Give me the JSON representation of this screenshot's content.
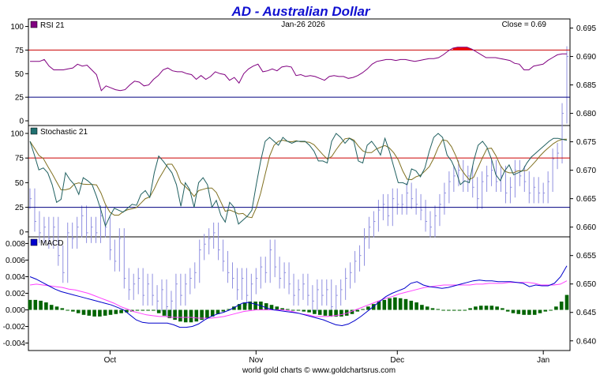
{
  "chart_data": {
    "type": "line",
    "title": "AD  -  Australian Dollar",
    "date": "Jan-26  2026",
    "close_label": "Close = 0.69",
    "footer": "world gold charts © www.goldchartsrus.com",
    "x_labels": [
      {
        "label": "Oct",
        "day": 17
      },
      {
        "label": "Nov",
        "day": 48
      },
      {
        "label": "Dec",
        "day": 78
      },
      {
        "label": "Jan",
        "day": 109
      }
    ],
    "price_axis": {
      "ylim": [
        0.6383,
        0.6966
      ],
      "ticks": [
        "0.695",
        "0.690",
        "0.685",
        "0.680",
        "0.675",
        "0.670",
        "0.665",
        "0.660",
        "0.655",
        "0.650",
        "0.645",
        "0.640"
      ]
    },
    "price_series": {
      "name": "Price",
      "color": "#9090e0",
      "close": [
        0.665,
        0.661,
        0.659,
        0.66,
        0.658,
        0.66,
        0.655,
        0.652,
        0.659,
        0.658,
        0.66,
        0.662,
        0.659,
        0.66,
        0.659,
        0.662,
        0.66,
        0.656,
        0.654,
        0.658,
        0.651,
        0.649,
        0.65,
        0.651,
        0.648,
        0.65,
        0.648,
        0.647,
        0.649,
        0.646,
        0.647,
        0.65,
        0.648,
        0.65,
        0.651,
        0.652,
        0.656,
        0.657,
        0.658,
        0.659,
        0.656,
        0.654,
        0.652,
        0.651,
        0.649,
        0.651,
        0.648,
        0.65,
        0.651,
        0.653,
        0.652,
        0.656,
        0.653,
        0.651,
        0.652,
        0.65,
        0.648,
        0.649,
        0.65,
        0.648,
        0.647,
        0.649,
        0.648,
        0.649,
        0.646,
        0.648,
        0.649,
        0.651,
        0.652,
        0.654,
        0.655,
        0.658,
        0.66,
        0.661,
        0.663,
        0.664,
        0.662,
        0.665,
        0.664,
        0.664,
        0.666,
        0.665,
        0.664,
        0.663,
        0.661,
        0.66,
        0.662,
        0.664,
        0.666,
        0.668,
        0.669,
        0.67,
        0.668,
        0.669,
        0.667,
        0.665,
        0.668,
        0.669,
        0.67,
        0.668,
        0.669,
        0.666,
        0.667,
        0.67,
        0.669,
        0.668,
        0.666,
        0.667,
        0.666,
        0.666,
        0.668,
        0.672,
        0.673,
        0.68,
        0.69
      ]
    },
    "rsi": {
      "name": "RSI 21",
      "legend_color": "#800080",
      "ylim": [
        -5,
        108
      ],
      "ticks": [
        100,
        75,
        50,
        25,
        0
      ],
      "levels": [
        {
          "value": 75,
          "color": "#cc0000"
        },
        {
          "value": 25,
          "color": "#000080"
        }
      ],
      "values": [
        63,
        63,
        63,
        65,
        58,
        54,
        54,
        54,
        55,
        56,
        60,
        58,
        59,
        54,
        49,
        32,
        37,
        35,
        33,
        32,
        33,
        38,
        42,
        41,
        37,
        38,
        44,
        48,
        54,
        56,
        53,
        52,
        52,
        50,
        49,
        44,
        48,
        44,
        47,
        52,
        50,
        49,
        43,
        46,
        40,
        50,
        55,
        58,
        60,
        52,
        53,
        55,
        53,
        57,
        58,
        57,
        48,
        49,
        47,
        48,
        47,
        45,
        43,
        47,
        48,
        47,
        47,
        45,
        46,
        48,
        51,
        55,
        60,
        63,
        64,
        65,
        65,
        64,
        65,
        65,
        64,
        63,
        64,
        65,
        66,
        66,
        67,
        70,
        74,
        77,
        78,
        78,
        78,
        76,
        73,
        70,
        67,
        67,
        67,
        66,
        65,
        64,
        61,
        60,
        54,
        54,
        58,
        59,
        60,
        64,
        67,
        70,
        71,
        71
      ]
    },
    "stochastic": {
      "name": "Stochastic 21",
      "legend_color": "#207070",
      "ylim": [
        -5,
        108
      ],
      "ticks": [
        100,
        75,
        50,
        25,
        0
      ],
      "levels": [
        {
          "value": 75,
          "color": "#cc0000"
        },
        {
          "value": 25,
          "color": "#000080"
        }
      ],
      "k_color": "#206060",
      "d_color": "#807020",
      "k": [
        92,
        78,
        63,
        65,
        60,
        48,
        30,
        33,
        60,
        53,
        48,
        38,
        55,
        52,
        48,
        36,
        22,
        6,
        16,
        24,
        22,
        20,
        24,
        28,
        27,
        38,
        42,
        35,
        60,
        77,
        72,
        66,
        60,
        48,
        26,
        50,
        43,
        25,
        50,
        55,
        48,
        25,
        32,
        17,
        10,
        30,
        25,
        8,
        12,
        16,
        22,
        48,
        72,
        92,
        96,
        92,
        88,
        96,
        92,
        90,
        92,
        92,
        92,
        88,
        82,
        72,
        72,
        70,
        92,
        100,
        96,
        90,
        95,
        92,
        72,
        70,
        88,
        92,
        86,
        78,
        95,
        82,
        66,
        50,
        50,
        48,
        64,
        62,
        56,
        65,
        82,
        96,
        100,
        96,
        78,
        72,
        62,
        48,
        52,
        50,
        72,
        88,
        92,
        86,
        74,
        58,
        52,
        62,
        68,
        58,
        60,
        62,
        70,
        76,
        80,
        84,
        88,
        92,
        95,
        95,
        94,
        93
      ]
    },
    "macd": {
      "name": "MACD",
      "legend_color": "#0000cc",
      "ylim": [
        -0.0049,
        0.0088
      ],
      "ticks": [
        "0.008",
        "0.006",
        "0.004",
        "0.002",
        "0.000",
        "-0.002",
        "-0.004"
      ],
      "macd_color": "#0000cc",
      "signal_color": "#ff40ff",
      "hist_color": "#006400",
      "macd": [
        0.004,
        0.0037,
        0.0033,
        0.0029,
        0.0025,
        0.0022,
        0.002,
        0.0018,
        0.0016,
        0.0014,
        0.0012,
        0.001,
        0.0008,
        0.0006,
        0.0003,
        0.0,
        -0.0006,
        -0.0012,
        -0.0015,
        -0.0016,
        -0.0016,
        -0.0016,
        -0.0016,
        -0.0018,
        -0.0021,
        -0.0021,
        -0.002,
        -0.0017,
        -0.0012,
        -0.0008,
        -0.0005,
        -0.0003,
        0.0,
        0.0004,
        0.0008,
        0.0009,
        0.0007,
        0.0005,
        0.0002,
        0.0,
        -0.0001,
        -0.0002,
        -0.0003,
        -0.0004,
        -0.0006,
        -0.0008,
        -0.001,
        -0.0012,
        -0.0015,
        -0.0018,
        -0.0019,
        -0.0017,
        -0.0013,
        -0.0008,
        -0.0002,
        0.0004,
        0.001,
        0.0016,
        0.002,
        0.0023,
        0.0026,
        0.0032,
        0.0034,
        0.003,
        0.0028,
        0.0027,
        0.0026,
        0.0027,
        0.0029,
        0.0031,
        0.0033,
        0.0035,
        0.0036,
        0.0035,
        0.0035,
        0.0034,
        0.0034,
        0.0034,
        0.0033,
        0.0032,
        0.0028,
        0.003,
        0.0029,
        0.0029,
        0.0032,
        0.004,
        0.0053
      ]
    },
    "signal_points": 84,
    "signal": [
      0.003,
      0.0031,
      0.003,
      0.0029,
      0.0028,
      0.0027,
      0.0025,
      0.0024,
      0.0022,
      0.002,
      0.0017,
      0.0014,
      0.0011,
      0.0008,
      0.0004,
      0.0001,
      -0.0002,
      -0.0004,
      -0.0006,
      -0.0007,
      -0.0008,
      -0.0008,
      -0.0009,
      -0.0009,
      -0.0009,
      -0.0009,
      -0.001,
      -0.001,
      -0.001,
      -0.0009,
      -0.0008,
      -0.0006,
      -0.0004,
      -0.0002,
      -0.0001,
      0.0,
      0.0,
      0.0,
      0.0,
      0.0,
      -0.0001,
      -0.0003,
      -0.0005,
      -0.0006,
      -0.0008,
      -0.0008,
      -0.0008,
      -0.0007,
      -0.0006,
      -0.0004,
      -0.0001,
      0.0002,
      0.0005,
      0.0008,
      0.0011,
      0.0014,
      0.0016,
      0.0019,
      0.0021,
      0.0023,
      0.0025,
      0.0027,
      0.0028,
      0.0029,
      0.003,
      0.003,
      0.003,
      0.003,
      0.003,
      0.0031,
      0.0031,
      0.0032,
      0.0032,
      0.0032,
      0.0033,
      0.0033,
      0.0033,
      0.0033,
      0.0032,
      0.003,
      0.003,
      0.003,
      0.0031,
      0.0035
    ],
    "histogram": [
      0.0012,
      0.0012,
      0.0011,
      0.0009,
      0.0006,
      0.0004,
      0.0002,
      0.0,
      -0.0002,
      -0.0004,
      -0.0006,
      -0.0007,
      -0.0008,
      -0.0008,
      -0.0007,
      -0.0006,
      -0.0005,
      -0.0004,
      -0.0003,
      -0.0002,
      -0.0001,
      -0.0001,
      -0.0001,
      -0.0001,
      -0.0004,
      -0.0007,
      -0.001,
      -0.0012,
      -0.0014,
      -0.0015,
      -0.0015,
      -0.0014,
      -0.0012,
      -0.001,
      -0.0008,
      -0.0005,
      -0.0002,
      0.0001,
      0.0004,
      0.0007,
      0.0009,
      0.001,
      0.001,
      0.001,
      0.0008,
      0.0006,
      0.0004,
      0.0002,
      0.0001,
      0.0,
      -0.0001,
      -0.0002,
      -0.0003,
      -0.0005,
      -0.0006,
      -0.0007,
      -0.0008,
      -0.0008,
      -0.0008,
      -0.0007,
      -0.0005,
      -0.0002,
      0.0001,
      0.0004,
      0.0007,
      0.001,
      0.0012,
      0.0014,
      0.0015,
      0.0014,
      0.0013,
      0.0011,
      0.0009,
      0.0006,
      0.0004,
      0.0002,
      0.0001,
      0.0,
      -0.0001,
      -0.0001,
      -0.0001,
      0.0,
      0.0002,
      0.0004,
      0.0005,
      0.0005,
      0.0005,
      0.0004,
      0.0002,
      -0.0002,
      -0.0004,
      -0.0005,
      -0.0006,
      -0.0006,
      -0.0006,
      -0.0004,
      -0.0002,
      0.0,
      0.0004,
      0.001,
      0.0018
    ]
  }
}
